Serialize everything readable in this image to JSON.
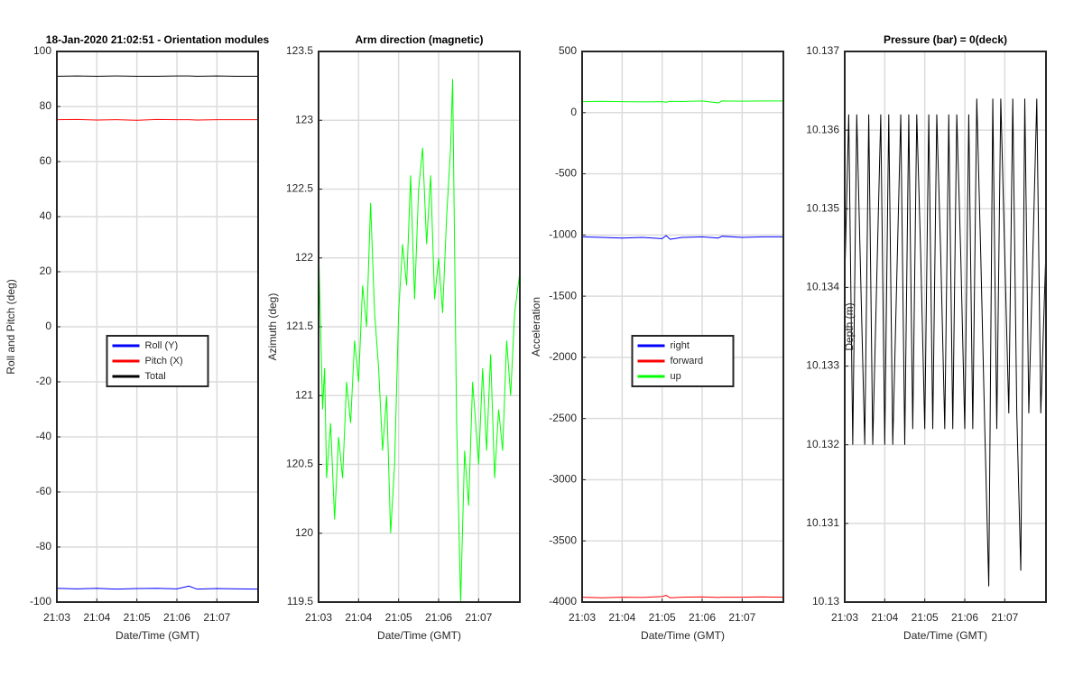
{
  "chart_data": [
    {
      "type": "line",
      "title": "18-Jan-2020 21:02:51 - Orientation modules",
      "xlabel": "Date/Time (GMT)",
      "ylabel": "Roll and Pitch (deg)",
      "xlim": [
        1263,
        1268.03
      ],
      "xticks": [
        {
          "value": 1263,
          "label": "21:03"
        },
        {
          "value": 1264,
          "label": "21:04"
        },
        {
          "value": 1265,
          "label": "21:05"
        },
        {
          "value": 1266,
          "label": "21:06"
        },
        {
          "value": 1267,
          "label": "21:07"
        }
      ],
      "ylim": [
        -100,
        100
      ],
      "yticks": [
        -100,
        -80,
        -60,
        -40,
        -20,
        0,
        20,
        40,
        60,
        80,
        100
      ],
      "grid": true,
      "legend": "center",
      "x": [
        1263,
        1263.5,
        1264,
        1264.5,
        1265,
        1265.5,
        1266,
        1266.3,
        1266.5,
        1267,
        1267.5,
        1268.03
      ],
      "series": [
        {
          "name": "Roll (Y)",
          "color": "#0000ff",
          "values": [
            -95,
            -95.2,
            -95,
            -95.3,
            -95.1,
            -95,
            -95.2,
            -94.2,
            -95.3,
            -95.1,
            -95.2,
            -95.3
          ]
        },
        {
          "name": "Pitch (X)",
          "color": "#ff0000",
          "values": [
            75.2,
            75.3,
            75.1,
            75.2,
            75,
            75.3,
            75.2,
            75.2,
            75.1,
            75.2,
            75.2,
            75.2
          ]
        },
        {
          "name": "Total",
          "color": "#000000",
          "values": [
            91,
            91.1,
            91,
            91.1,
            91,
            91,
            91.1,
            91.1,
            91,
            91.1,
            91,
            91
          ]
        }
      ]
    },
    {
      "type": "line",
      "title": "Arm direction (magnetic)",
      "xlabel": "Date/Time (GMT)",
      "ylabel": "Azimuth (deg)",
      "xlim": [
        1263,
        1268.03
      ],
      "xticks": [
        {
          "value": 1263,
          "label": "21:03"
        },
        {
          "value": 1264,
          "label": "21:04"
        },
        {
          "value": 1265,
          "label": "21:05"
        },
        {
          "value": 1266,
          "label": "21:06"
        },
        {
          "value": 1267,
          "label": "21:07"
        }
      ],
      "ylim": [
        119.5,
        123.5
      ],
      "yticks": [
        119.5,
        120,
        120.5,
        121,
        121.5,
        122,
        122.5,
        123,
        123.5
      ],
      "grid": true,
      "x": [
        1263,
        1263.05,
        1263.1,
        1263.15,
        1263.2,
        1263.3,
        1263.4,
        1263.5,
        1263.6,
        1263.7,
        1263.8,
        1263.9,
        1264,
        1264.1,
        1264.2,
        1264.3,
        1264.4,
        1264.5,
        1264.6,
        1264.7,
        1264.8,
        1264.9,
        1265,
        1265.1,
        1265.2,
        1265.3,
        1265.4,
        1265.5,
        1265.6,
        1265.7,
        1265.8,
        1265.9,
        1266,
        1266.1,
        1266.2,
        1266.3,
        1266.35,
        1266.45,
        1266.55,
        1266.65,
        1266.75,
        1266.85,
        1267,
        1267.1,
        1267.2,
        1267.3,
        1267.4,
        1267.5,
        1267.6,
        1267.7,
        1267.8,
        1267.9,
        1268.03
      ],
      "series": [
        {
          "name": "Azimuth",
          "color": "#00ff00",
          "values": [
            122.1,
            121.5,
            120.9,
            121.2,
            120.4,
            120.8,
            120.1,
            120.7,
            120.4,
            121.1,
            120.8,
            121.4,
            121.1,
            121.8,
            121.5,
            122.4,
            121.6,
            121.2,
            120.6,
            121.0,
            120.0,
            120.5,
            121.6,
            122.1,
            121.8,
            122.6,
            121.7,
            122.5,
            122.8,
            122.1,
            122.6,
            121.7,
            122.0,
            121.6,
            122.3,
            122.8,
            123.3,
            120.8,
            119.5,
            120.6,
            120.2,
            121.1,
            120.5,
            121.2,
            120.6,
            121.3,
            120.4,
            120.9,
            120.6,
            121.4,
            121.0,
            121.6,
            121.9
          ]
        }
      ]
    },
    {
      "type": "line",
      "xlabel": "Date/Time (GMT)",
      "ylabel": "Acceleration",
      "xlim": [
        1263,
        1268.03
      ],
      "xticks": [
        {
          "value": 1263,
          "label": "21:03"
        },
        {
          "value": 1264,
          "label": "21:04"
        },
        {
          "value": 1265,
          "label": "21:05"
        },
        {
          "value": 1266,
          "label": "21:06"
        },
        {
          "value": 1267,
          "label": "21:07"
        }
      ],
      "ylim": [
        -4000,
        500
      ],
      "yticks": [
        -4000,
        -3500,
        -3000,
        -2500,
        -2000,
        -1500,
        -1000,
        -500,
        0,
        500
      ],
      "grid": true,
      "legend": "center",
      "x": [
        1263,
        1263.5,
        1264,
        1264.5,
        1265,
        1265.1,
        1265.2,
        1265.5,
        1266,
        1266.4,
        1266.5,
        1267,
        1267.5,
        1268.03
      ],
      "series": [
        {
          "name": "right",
          "color": "#0000ff",
          "values": [
            -1015,
            -1020,
            -1025,
            -1020,
            -1030,
            -1005,
            -1035,
            -1020,
            -1015,
            -1025,
            -1010,
            -1020,
            -1015,
            -1015
          ]
        },
        {
          "name": "forward",
          "color": "#ff0000",
          "values": [
            -3960,
            -3965,
            -3960,
            -3962,
            -3955,
            -3945,
            -3965,
            -3960,
            -3958,
            -3962,
            -3960,
            -3960,
            -3958,
            -3960
          ]
        },
        {
          "name": "up",
          "color": "#00ff00",
          "values": [
            90,
            92,
            90,
            88,
            90,
            85,
            92,
            91,
            95,
            80,
            95,
            93,
            95,
            95
          ]
        }
      ]
    },
    {
      "type": "line",
      "title": "Pressure (bar) = 0(deck)",
      "xlabel": "Date/Time (GMT)",
      "ylabel": "Depth (m)",
      "xlim": [
        1263,
        1268.03
      ],
      "xticks": [
        {
          "value": 1263,
          "label": "21:03"
        },
        {
          "value": 1264,
          "label": "21:04"
        },
        {
          "value": 1265,
          "label": "21:05"
        },
        {
          "value": 1266,
          "label": "21:06"
        },
        {
          "value": 1267,
          "label": "21:07"
        }
      ],
      "ylim": [
        10.13,
        10.137
      ],
      "yticks": [
        10.13,
        10.131,
        10.132,
        10.133,
        10.134,
        10.135,
        10.136,
        10.137
      ],
      "grid": true,
      "x": [
        1263,
        1263.1,
        1263.2,
        1263.3,
        1263.4,
        1263.5,
        1263.6,
        1263.7,
        1263.8,
        1263.9,
        1264,
        1264.1,
        1264.2,
        1264.3,
        1264.4,
        1264.5,
        1264.6,
        1264.7,
        1264.8,
        1264.9,
        1265,
        1265.1,
        1265.2,
        1265.3,
        1265.4,
        1265.5,
        1265.6,
        1265.7,
        1265.8,
        1265.9,
        1266,
        1266.1,
        1266.2,
        1266.3,
        1266.4,
        1266.5,
        1266.6,
        1266.7,
        1266.8,
        1266.9,
        1267,
        1267.1,
        1267.2,
        1267.3,
        1267.4,
        1267.5,
        1267.6,
        1267.7,
        1267.8,
        1267.9,
        1268.03
      ],
      "series": [
        {
          "name": "Depth",
          "color": "#000000",
          "values": [
            10.1341,
            10.1362,
            10.132,
            10.1362,
            10.1341,
            10.132,
            10.1362,
            10.132,
            10.1341,
            10.1362,
            10.132,
            10.1362,
            10.132,
            10.1341,
            10.1362,
            10.132,
            10.1362,
            10.1322,
            10.1362,
            10.1344,
            10.1322,
            10.1362,
            10.1322,
            10.1362,
            10.1344,
            10.1322,
            10.1362,
            10.1322,
            10.1362,
            10.1344,
            10.1322,
            10.1362,
            10.1322,
            10.1364,
            10.1344,
            10.1322,
            10.1302,
            10.1364,
            10.1322,
            10.1364,
            10.1344,
            10.1324,
            10.1364,
            10.1324,
            10.1304,
            10.1364,
            10.1324,
            10.1344,
            10.1364,
            10.1324,
            10.1345
          ]
        }
      ]
    }
  ]
}
